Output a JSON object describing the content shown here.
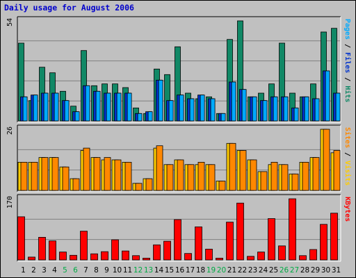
{
  "chart_data": {
    "type": "bar",
    "title": "Daily usage for August 2006",
    "categories": [
      "1",
      "2",
      "3",
      "4",
      "5",
      "6",
      "7",
      "8",
      "9",
      "10",
      "11",
      "12",
      "13",
      "14",
      "15",
      "16",
      "17",
      "18",
      "19",
      "20",
      "21",
      "22",
      "23",
      "24",
      "25",
      "26",
      "27",
      "28",
      "29",
      "30",
      "31"
    ],
    "weekend_days": [
      "5",
      "6",
      "12",
      "13",
      "19",
      "20",
      "26",
      "27"
    ],
    "grid": true,
    "panels": [
      {
        "name": "hits-files-pages",
        "ymax_label": "54",
        "ylim": [
          0,
          54
        ],
        "right_label": [
          {
            "text": "Pages",
            "color": "#00AAFF"
          },
          {
            "text": " / ",
            "color": "#000000"
          },
          {
            "text": "Files",
            "color": "#0033CC"
          },
          {
            "text": " / ",
            "color": "#000000"
          },
          {
            "text": "Hits",
            "color": "#118866"
          }
        ],
        "series": [
          {
            "name": "Hits",
            "color": "#118866",
            "values": [
              42,
              11,
              29,
              26,
              16,
              8,
              38,
              19,
              20,
              20,
              18,
              7,
              4,
              28,
              25,
              40,
              15,
              12,
              13,
              4,
              44,
              54,
              13,
              15,
              20,
              42,
              15,
              13,
              20,
              48,
              50
            ]
          },
          {
            "name": "Files",
            "color": "#0033CC",
            "values": [
              13,
              14,
              15,
              15,
              11,
              5,
              19,
              16,
              15,
              15,
              15,
              4,
              5,
              22,
              11,
              14,
              12,
              14,
              12,
              4,
              21,
              17,
              13,
              11,
              13,
              13,
              7,
              13,
              12,
              27,
              15
            ]
          },
          {
            "name": "Pages",
            "color": "#00AAFF",
            "values": [
              13,
              14,
              15,
              15,
              11,
              5,
              19,
              16,
              15,
              15,
              15,
              4,
              5,
              22,
              11,
              14,
              12,
              14,
              12,
              4,
              21,
              17,
              13,
              11,
              13,
              13,
              7,
              13,
              12,
              27,
              15
            ]
          }
        ]
      },
      {
        "name": "visits-sites",
        "ymax_label": "26",
        "ylim": [
          0,
          26
        ],
        "right_label": [
          {
            "text": "Sites",
            "color": "#FF8800"
          },
          {
            "text": " / ",
            "color": "#000000"
          },
          {
            "text": "Visits",
            "color": "#FFCC00"
          }
        ],
        "series": [
          {
            "name": "Visits",
            "color": "#FFCC00",
            "values": [
              12,
              12,
              14,
              14,
              10,
              5,
              17,
              14,
              13,
              13,
              12,
              3,
              5,
              18,
              11,
              13,
              11,
              11,
              11,
              4,
              20,
              17,
              13,
              8,
              11,
              11,
              7,
              12,
              14,
              26,
              16
            ]
          },
          {
            "name": "Sites",
            "color": "#FF8800",
            "values": [
              12,
              12,
              14,
              14,
              10,
              5,
              18,
              14,
              14,
              13,
              12,
              3,
              5,
              19,
              11,
              13,
              11,
              12,
              11,
              4,
              20,
              17,
              13,
              8,
              12,
              11,
              7,
              12,
              14,
              26,
              17
            ]
          }
        ]
      },
      {
        "name": "kbytes",
        "ymax_label": "170",
        "ylim": [
          0,
          170
        ],
        "right_label": [
          {
            "text": "KBytes",
            "color": "#FF0000"
          }
        ],
        "series": [
          {
            "name": "KBytes",
            "color": "#FF0000",
            "values": [
              120,
              8,
              63,
              53,
              22,
              13,
              80,
              17,
              23,
              56,
              25,
              12,
              5,
              42,
              52,
              112,
              18,
              92,
              30,
              5,
              105,
              158,
              10,
              22,
              115,
              39,
              170,
              12,
              29,
              99,
              130
            ]
          }
        ]
      }
    ],
    "colors": {
      "frame": "#C0C0C0",
      "plot_bg": "#C0C0C0",
      "title_color": "#0000CC",
      "weekend_label_color": "#00AA44",
      "weekday_label_color": "#000000",
      "grid_color": "#808080",
      "hits": "#118866",
      "files": "#0033CC",
      "pages": "#00AAFF",
      "visits": "#FFCC00",
      "sites": "#FF8800",
      "kbytes": "#FF0000"
    }
  }
}
